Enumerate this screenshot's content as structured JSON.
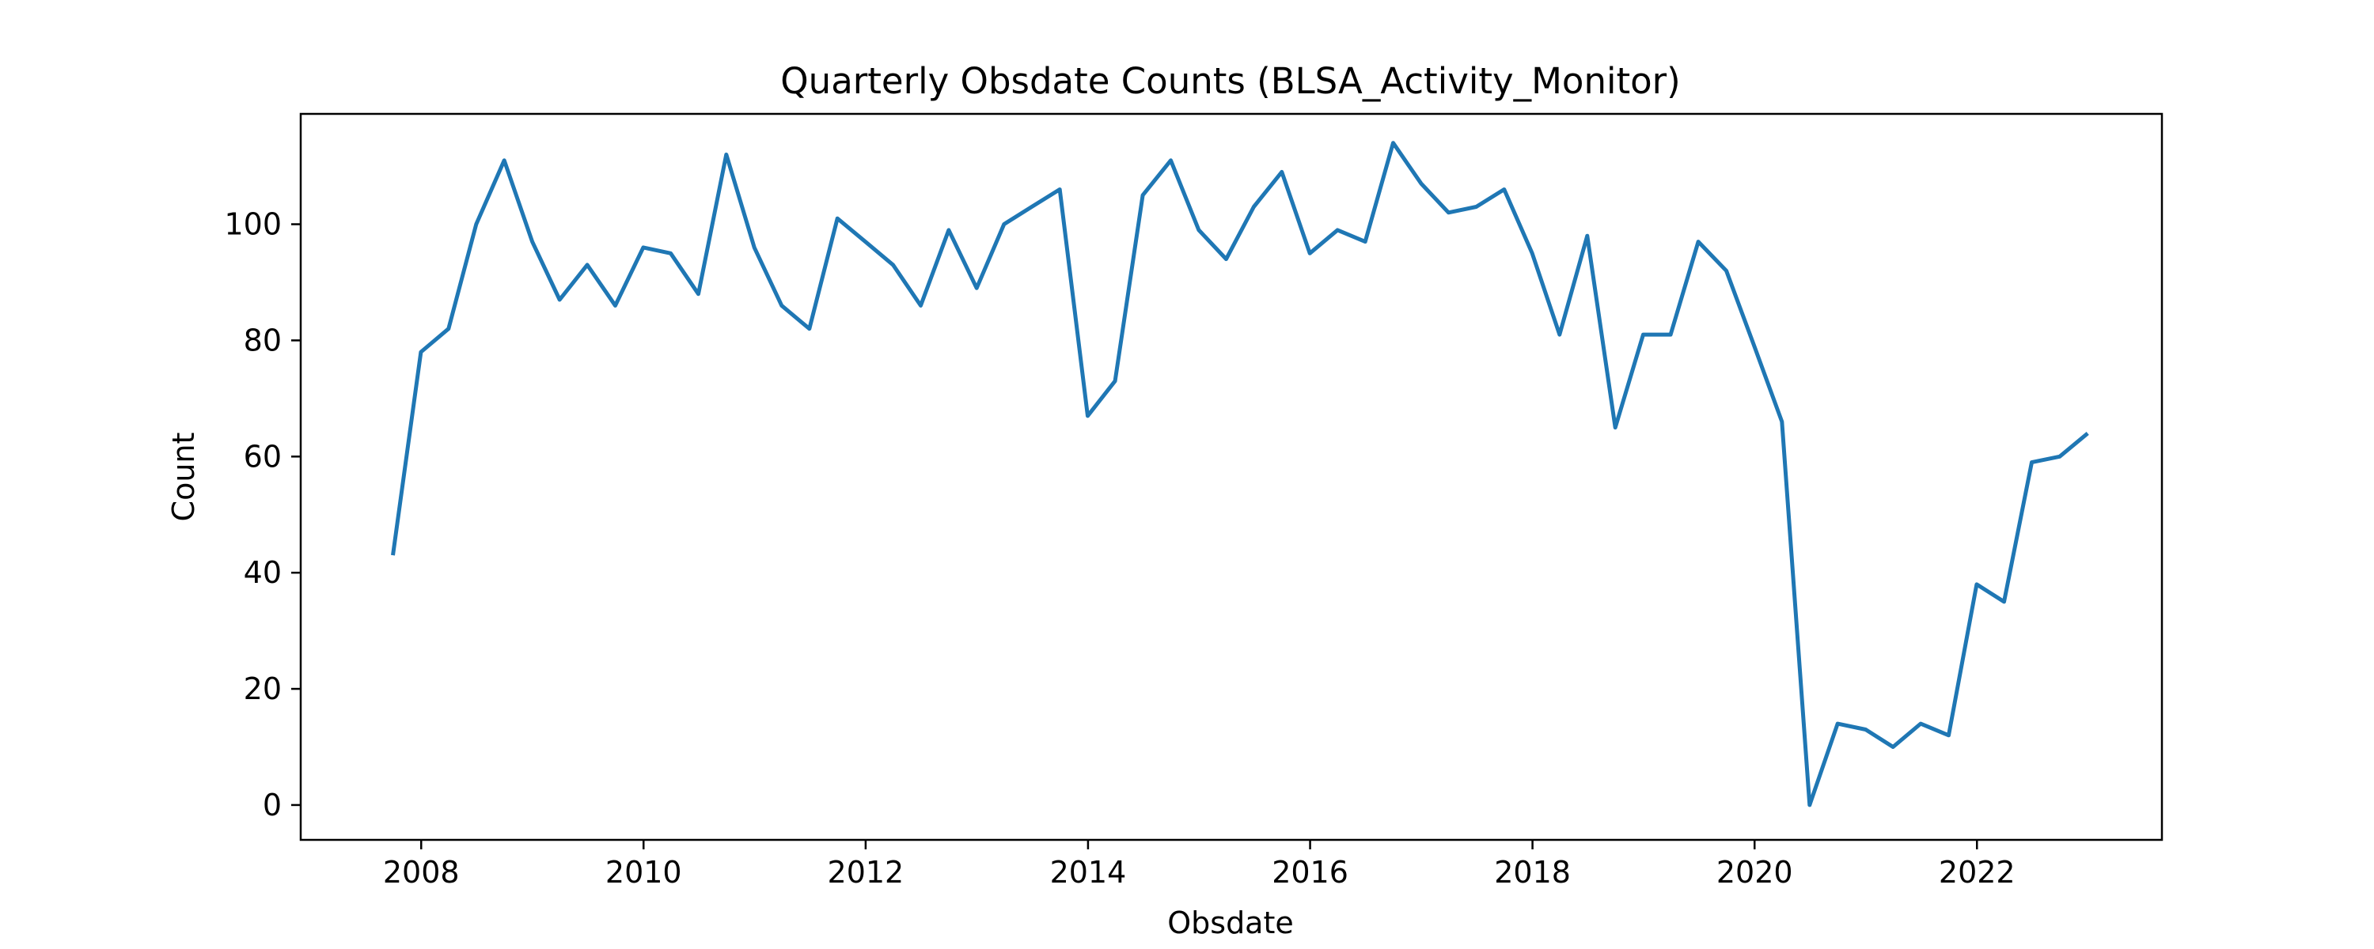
{
  "chart_data": {
    "type": "line",
    "title": "Quarterly Obsdate Counts (BLSA_Activity_Monitor)",
    "xlabel": "Obsdate",
    "ylabel": "Count",
    "xlim": [
      "2006-12-01",
      "2023-09-01"
    ],
    "ylim": [
      -6,
      119
    ],
    "x_ticks": [
      "2008-01-01",
      "2010-01-01",
      "2012-01-01",
      "2014-01-01",
      "2016-01-01",
      "2018-01-01",
      "2020-01-01",
      "2022-01-01"
    ],
    "x_tick_labels": [
      "2008",
      "2010",
      "2012",
      "2014",
      "2016",
      "2018",
      "2020",
      "2022"
    ],
    "y_ticks": [
      0,
      20,
      40,
      60,
      80,
      100
    ],
    "y_tick_labels": [
      "0",
      "20",
      "40",
      "60",
      "80",
      "100"
    ],
    "grid": false,
    "line_color": "#1f77b4",
    "series": [
      {
        "x": [
          "2007-09-30",
          "2007-12-31",
          "2008-03-31",
          "2008-06-30",
          "2008-09-30",
          "2008-12-31",
          "2009-03-31",
          "2009-06-30",
          "2009-09-30",
          "2009-12-31",
          "2010-03-31",
          "2010-06-30",
          "2010-09-30",
          "2010-12-31",
          "2011-03-31",
          "2011-06-30",
          "2011-09-30",
          "2011-12-31",
          "2012-03-31",
          "2012-06-30",
          "2012-09-30",
          "2012-12-31",
          "2013-03-31",
          "2013-06-30",
          "2013-09-30",
          "2013-12-31",
          "2014-03-31",
          "2014-06-30",
          "2014-09-30",
          "2014-12-31",
          "2015-03-31",
          "2015-06-30",
          "2015-09-30",
          "2015-12-31",
          "2016-03-31",
          "2016-06-30",
          "2016-09-30",
          "2016-12-31",
          "2017-03-31",
          "2017-06-30",
          "2017-09-30",
          "2017-12-31",
          "2018-03-31",
          "2018-06-30",
          "2018-09-30",
          "2018-12-31",
          "2019-03-31",
          "2019-06-30",
          "2019-09-30",
          "2019-12-31",
          "2020-03-31",
          "2020-06-30",
          "2020-09-30",
          "2020-12-31",
          "2021-03-31",
          "2021-06-30",
          "2021-09-30",
          "2021-12-31",
          "2022-03-31",
          "2022-06-30",
          "2022-09-30",
          "2022-12-31"
        ],
        "values": [
          43,
          78,
          82,
          100,
          111,
          97,
          87,
          93,
          86,
          96,
          95,
          88,
          112,
          96,
          86,
          82,
          101,
          97,
          93,
          86,
          99,
          89,
          100,
          103,
          106,
          67,
          73,
          105,
          111,
          99,
          94,
          103,
          109,
          95,
          99,
          97,
          114,
          107,
          102,
          103,
          106,
          95,
          81,
          98,
          65,
          81,
          81,
          97,
          92,
          79,
          66,
          0,
          14,
          13,
          10,
          14,
          12,
          38,
          35,
          59,
          60,
          64
        ]
      }
    ]
  }
}
